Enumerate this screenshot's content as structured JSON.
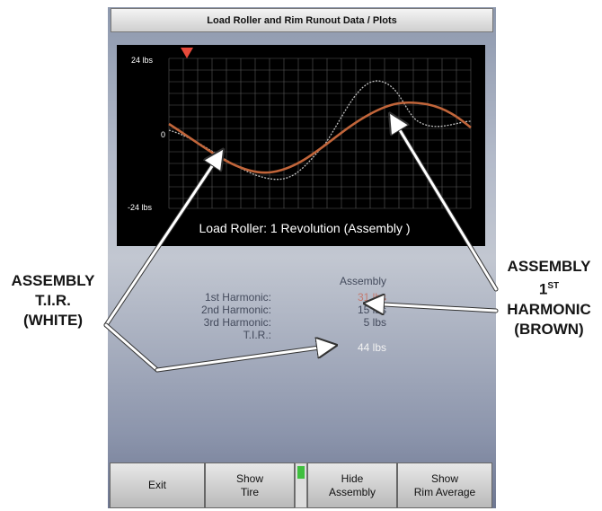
{
  "window": {
    "title": "Load Roller and Rim Runout Data / Plots"
  },
  "plot": {
    "y_top_label": "24 lbs",
    "y_mid_label": "0",
    "y_bottom_label": "-24 lbs",
    "caption": "Load Roller:  1 Revolution (Assembly )"
  },
  "harmonics": {
    "column_header": "Assembly",
    "rows": [
      {
        "label": "1st Harmonic:",
        "value": "31 lbs"
      },
      {
        "label": "2nd Harmonic:",
        "value": "15 lbs"
      },
      {
        "label": "3rd Harmonic:",
        "value": "5 lbs"
      },
      {
        "label": "T.I.R.:",
        "value": "44 lbs"
      }
    ],
    "first_value_color": "#c47a6f"
  },
  "toolbar": {
    "exit": "Exit",
    "show_tire_line1": "Show",
    "show_tire_line2": "Tire",
    "hide_assembly_line1": "Hide",
    "hide_assembly_line2": "Assembly",
    "show_rim_line1": "Show",
    "show_rim_line2": "Rim Average",
    "indicator_color": "#3fbf3f"
  },
  "callouts": {
    "left": {
      "line1": "ASSEMBLY",
      "line2": "T.I.R.",
      "line3": "(WHITE)"
    },
    "right": {
      "line1": "ASSEMBLY",
      "line2": "1",
      "line2_sup": "ST",
      "line3": "HARMONIC",
      "line4": "(BROWN)"
    }
  },
  "colors": {
    "harmonic_curve": "#c1653a",
    "tir_curve": "#bdbdbd",
    "marker": "#e84a3a"
  }
}
